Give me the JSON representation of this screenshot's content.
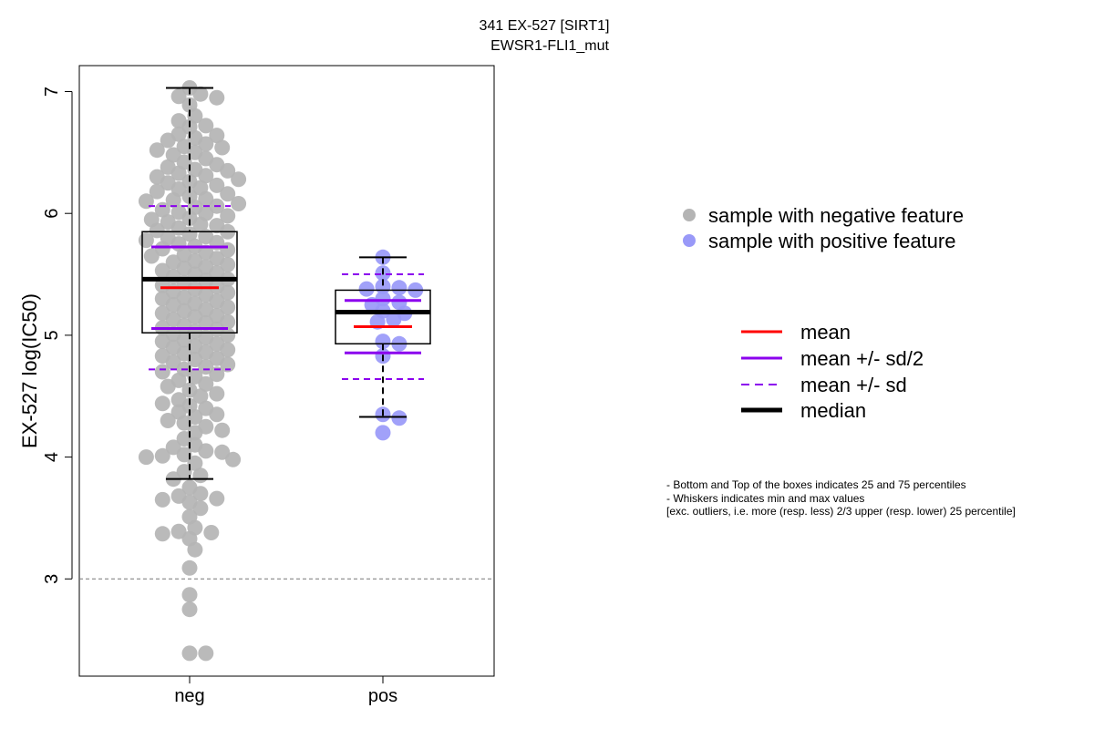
{
  "chart_data": {
    "type": "box",
    "title": [
      "341 EX-527 [SIRT1]",
      "EWSR1-FLI1_mut"
    ],
    "xlabel": "",
    "ylabel": "EX-527 log(IC50)",
    "categories": [
      "neg",
      "pos"
    ],
    "ylim": [
      2.2,
      7.2
    ],
    "yticks": [
      3,
      4,
      5,
      6,
      7
    ],
    "reference_line": 3,
    "groups": [
      {
        "name": "neg",
        "color": "#b4b4b4",
        "whisker_low": 3.82,
        "q1": 5.02,
        "median": 5.46,
        "q3": 5.85,
        "whisker_high": 7.03,
        "mean": 5.39,
        "sd": 0.67,
        "points": [
          7.03,
          6.98,
          6.96,
          6.95,
          6.89,
          6.8,
          6.76,
          6.72,
          6.71,
          6.65,
          6.64,
          6.62,
          6.6,
          6.57,
          6.55,
          6.54,
          6.52,
          6.5,
          6.48,
          6.45,
          6.42,
          6.4,
          6.38,
          6.36,
          6.35,
          6.33,
          6.31,
          6.3,
          6.28,
          6.26,
          6.25,
          6.23,
          6.21,
          6.2,
          6.18,
          6.16,
          6.14,
          6.12,
          6.11,
          6.1,
          6.08,
          6.06,
          6.05,
          6.03,
          6.01,
          6.0,
          5.98,
          5.96,
          5.95,
          5.93,
          5.91,
          5.9,
          5.88,
          5.86,
          5.85,
          5.83,
          5.81,
          5.8,
          5.78,
          5.76,
          5.75,
          5.73,
          5.71,
          5.7,
          5.68,
          5.66,
          5.65,
          5.63,
          5.61,
          5.6,
          5.58,
          5.56,
          5.55,
          5.53,
          5.51,
          5.5,
          5.48,
          5.46,
          5.45,
          5.43,
          5.41,
          5.4,
          5.38,
          5.36,
          5.35,
          5.33,
          5.31,
          5.3,
          5.28,
          5.26,
          5.25,
          5.23,
          5.21,
          5.2,
          5.18,
          5.16,
          5.15,
          5.13,
          5.11,
          5.1,
          5.08,
          5.06,
          5.05,
          5.03,
          5.01,
          5.0,
          4.98,
          4.96,
          4.95,
          4.93,
          4.91,
          4.9,
          4.88,
          4.86,
          4.85,
          4.83,
          4.81,
          4.8,
          4.78,
          4.76,
          4.74,
          4.72,
          4.7,
          4.68,
          4.66,
          4.63,
          4.6,
          4.58,
          4.55,
          4.52,
          4.5,
          4.47,
          4.44,
          4.42,
          4.4,
          4.37,
          4.35,
          4.33,
          4.3,
          4.28,
          4.25,
          4.22,
          4.2,
          4.15,
          4.1,
          4.08,
          4.05,
          4.04,
          4.02,
          4.01,
          4.0,
          3.98,
          3.95,
          3.88,
          3.85,
          3.82,
          3.75,
          3.7,
          3.68,
          3.66,
          3.65,
          3.63,
          3.58,
          3.51,
          3.42,
          3.39,
          3.38,
          3.37,
          3.33,
          3.24,
          3.09,
          2.87,
          2.75,
          2.39,
          2.39
        ]
      },
      {
        "name": "pos",
        "color": "#9999f8",
        "whisker_low": 4.33,
        "q1": 4.93,
        "median": 5.19,
        "q3": 5.37,
        "whisker_high": 5.64,
        "mean": 5.07,
        "sd": 0.43,
        "points": [
          5.64,
          5.51,
          5.4,
          5.39,
          5.38,
          5.37,
          5.3,
          5.27,
          5.25,
          5.2,
          5.18,
          5.13,
          5.11,
          4.95,
          4.93,
          4.83,
          4.35,
          4.32,
          4.2
        ]
      }
    ],
    "legend_points": [
      {
        "label": "sample with negative feature",
        "color": "#b4b4b4"
      },
      {
        "label": "sample with positive feature",
        "color": "#9999f8"
      }
    ],
    "legend_lines": [
      {
        "label": "mean",
        "color": "#ff0000",
        "style": "solid"
      },
      {
        "label": "mean +/- sd/2",
        "color": "#8b00ee",
        "style": "solid"
      },
      {
        "label": "mean +/- sd",
        "color": "#8b00ee",
        "style": "dashed"
      },
      {
        "label": "median",
        "color": "#000000",
        "style": "thick"
      }
    ],
    "notes": [
      "- Bottom and Top of the boxes indicates 25 and 75 percentiles",
      "- Whiskers indicates min and max values",
      "[exc. outliers, i.e. more (resp. less) 2/3 upper (resp. lower) 25 percentile]"
    ]
  }
}
